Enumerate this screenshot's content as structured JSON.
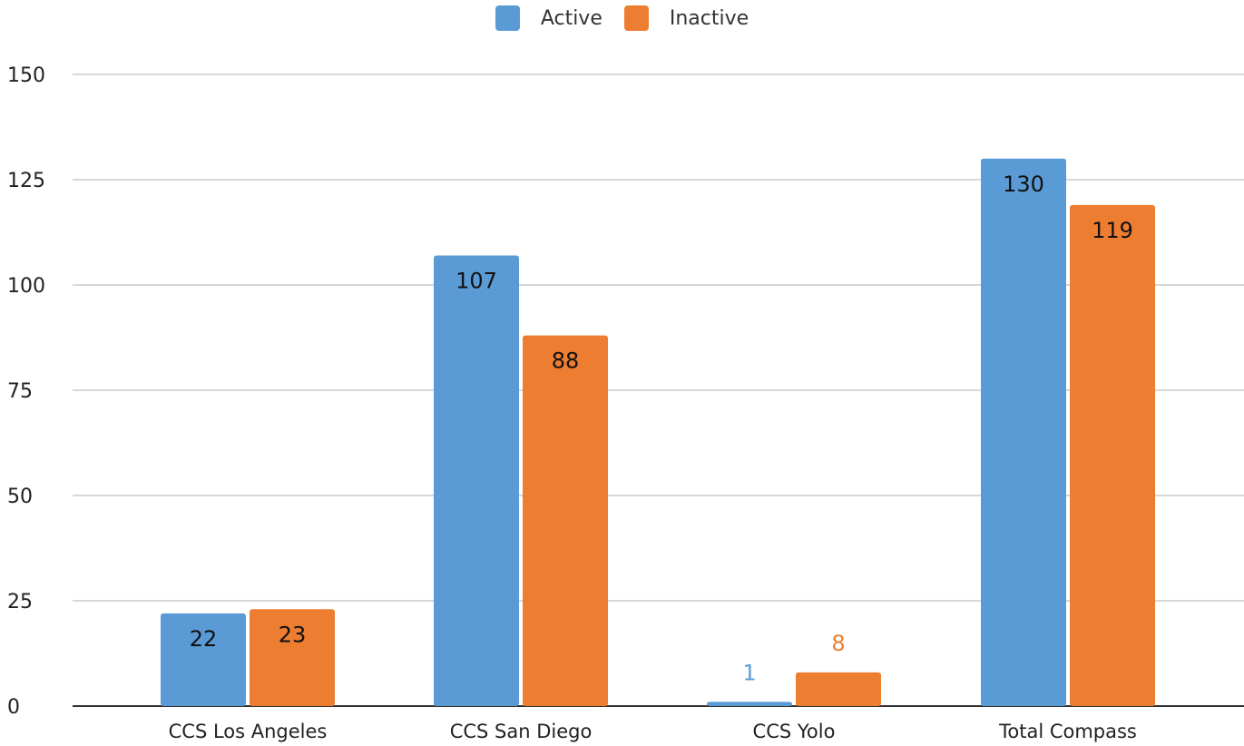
{
  "chart_data": {
    "type": "bar",
    "title": "",
    "xlabel": "",
    "ylabel": "",
    "categories": [
      "CCS Los Angeles",
      "CCS San Diego",
      "CCS Yolo",
      "Total Compass"
    ],
    "series": [
      {
        "name": "Active",
        "values": [
          22,
          107,
          1,
          130
        ],
        "color": "#5b9bd5"
      },
      {
        "name": "Inactive",
        "values": [
          23,
          88,
          8,
          119
        ],
        "color": "#ed7d31"
      }
    ],
    "ylim": [
      0,
      150
    ],
    "yticks": [
      0,
      25,
      50,
      75,
      100,
      125,
      150
    ],
    "grid": true,
    "legend_position": "top-center",
    "data_labels": true
  }
}
